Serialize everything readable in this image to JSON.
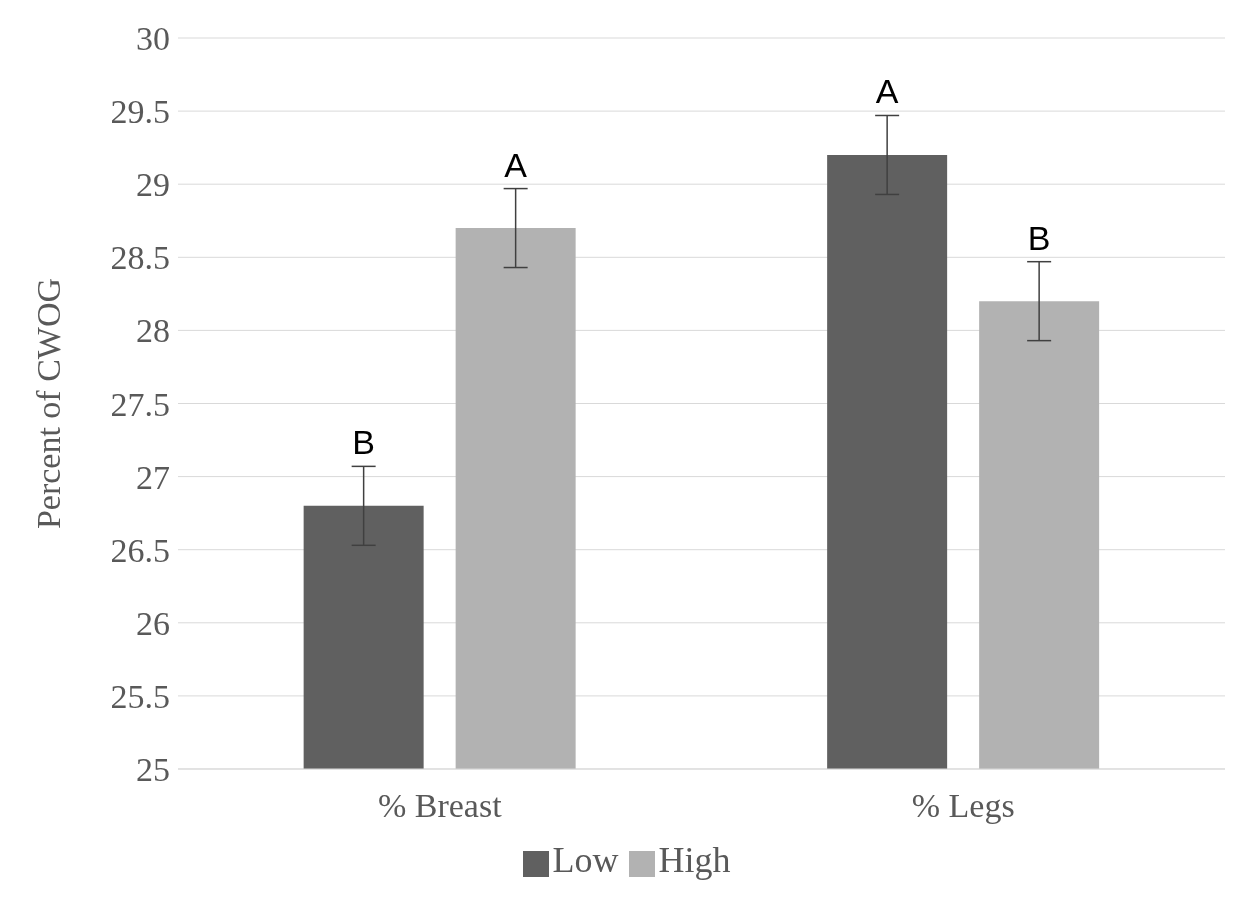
{
  "chart_data": {
    "type": "bar",
    "ylabel": "Percent of CWOG",
    "categories": [
      "% Breast",
      "% Legs"
    ],
    "series": [
      {
        "name": "Low",
        "color": "#606060",
        "values": [
          26.8,
          29.2
        ],
        "errors": [
          0.27,
          0.27
        ]
      },
      {
        "name": "High",
        "color": "#b2b2b2",
        "values": [
          28.7,
          28.2
        ],
        "errors": [
          0.27,
          0.27
        ]
      }
    ],
    "ylim": [
      25,
      30
    ],
    "yticks": [
      25,
      25.5,
      26,
      26.5,
      27,
      27.5,
      28,
      28.5,
      29,
      29.5,
      30
    ],
    "grid": "y",
    "legend": "bottom",
    "annotations": [
      "B",
      "A",
      "A",
      "B"
    ]
  }
}
